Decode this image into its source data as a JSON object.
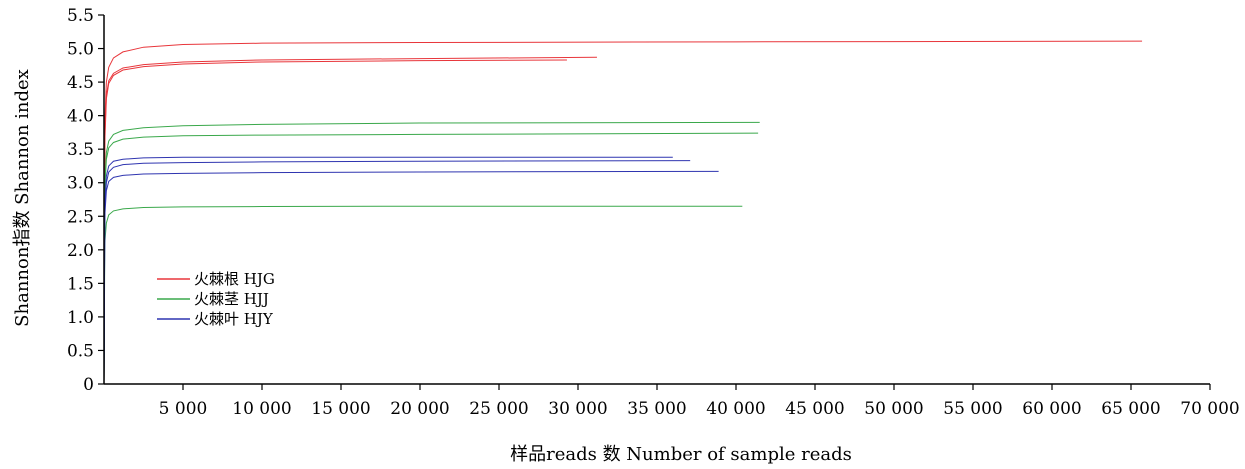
{
  "chart_data": {
    "type": "line",
    "xlabel": "样品reads 数  Number of sample reads",
    "ylabel": "Shannon指数  Shannon index",
    "xlim": [
      0,
      70000
    ],
    "ylim": [
      0,
      5.5
    ],
    "x_ticks": [
      {
        "value": 5000,
        "label": "5 000"
      },
      {
        "value": 10000,
        "label": "10 000"
      },
      {
        "value": 15000,
        "label": "15 000"
      },
      {
        "value": 20000,
        "label": "20 000"
      },
      {
        "value": 25000,
        "label": "25 000"
      },
      {
        "value": 30000,
        "label": "30 000"
      },
      {
        "value": 35000,
        "label": "35 000"
      },
      {
        "value": 40000,
        "label": "40 000"
      },
      {
        "value": 45000,
        "label": "45 000"
      },
      {
        "value": 50000,
        "label": "50 000"
      },
      {
        "value": 55000,
        "label": "55 000"
      },
      {
        "value": 60000,
        "label": "60 000"
      },
      {
        "value": 65000,
        "label": "65 000"
      },
      {
        "value": 70000,
        "label": "70 000"
      }
    ],
    "y_ticks": [
      {
        "value": 0,
        "label": "0"
      },
      {
        "value": 0.5,
        "label": "0.5"
      },
      {
        "value": 1.0,
        "label": "1.0"
      },
      {
        "value": 1.5,
        "label": "1.5"
      },
      {
        "value": 2.0,
        "label": "2.0"
      },
      {
        "value": 2.5,
        "label": "2.5"
      },
      {
        "value": 3.0,
        "label": "3.0"
      },
      {
        "value": 3.5,
        "label": "3.5"
      },
      {
        "value": 4.0,
        "label": "4.0"
      },
      {
        "value": 4.5,
        "label": "4.5"
      },
      {
        "value": 5.0,
        "label": "5.0"
      },
      {
        "value": 5.5,
        "label": "5.5"
      }
    ],
    "grid": false,
    "legend_position": "left-middle",
    "legend": [
      {
        "label": "火棘根 HJG",
        "color": "#e8363b"
      },
      {
        "label": "火棘茎 HJJ",
        "color": "#3aa84b"
      },
      {
        "label": "火棘叶 HJY",
        "color": "#2f35b0"
      }
    ],
    "series": [
      {
        "group": "HJG",
        "color": "#e8363b",
        "x": [
          0,
          50,
          150,
          300,
          600,
          1200,
          2500,
          5000,
          10000,
          20000,
          40000,
          65700
        ],
        "y": [
          0,
          3.9,
          4.5,
          4.72,
          4.86,
          4.95,
          5.02,
          5.06,
          5.08,
          5.09,
          5.1,
          5.11
        ]
      },
      {
        "group": "HJG",
        "color": "#e8363b",
        "x": [
          0,
          50,
          150,
          300,
          600,
          1200,
          2500,
          5000,
          10000,
          20000,
          31200
        ],
        "y": [
          0,
          3.7,
          4.3,
          4.52,
          4.63,
          4.71,
          4.76,
          4.8,
          4.83,
          4.85,
          4.87
        ]
      },
      {
        "group": "HJG",
        "color": "#e8363b",
        "x": [
          0,
          50,
          150,
          300,
          600,
          1200,
          2500,
          5000,
          10000,
          20000,
          29300
        ],
        "y": [
          0,
          3.6,
          4.25,
          4.48,
          4.6,
          4.68,
          4.73,
          4.77,
          4.8,
          4.82,
          4.83
        ]
      },
      {
        "group": "HJJ",
        "color": "#3aa84b",
        "x": [
          0,
          50,
          150,
          300,
          600,
          1200,
          2500,
          5000,
          10000,
          20000,
          41500
        ],
        "y": [
          0,
          3.0,
          3.45,
          3.62,
          3.72,
          3.78,
          3.82,
          3.85,
          3.87,
          3.89,
          3.9
        ]
      },
      {
        "group": "HJJ",
        "color": "#3aa84b",
        "x": [
          0,
          50,
          150,
          300,
          600,
          1200,
          2500,
          5000,
          10000,
          20000,
          41400
        ],
        "y": [
          0,
          2.9,
          3.35,
          3.52,
          3.6,
          3.65,
          3.68,
          3.7,
          3.71,
          3.72,
          3.74
        ]
      },
      {
        "group": "HJJ",
        "color": "#3aa84b",
        "x": [
          0,
          50,
          150,
          300,
          600,
          1200,
          2500,
          5000,
          10000,
          20000,
          40400
        ],
        "y": [
          0,
          2.1,
          2.4,
          2.52,
          2.58,
          2.61,
          2.63,
          2.64,
          2.645,
          2.65,
          2.65
        ]
      },
      {
        "group": "HJY",
        "color": "#2f35b0",
        "x": [
          0,
          50,
          150,
          300,
          600,
          1200,
          2500,
          5000,
          10000,
          20000,
          36000
        ],
        "y": [
          0,
          2.7,
          3.1,
          3.25,
          3.32,
          3.35,
          3.37,
          3.38,
          3.38,
          3.38,
          3.38
        ]
      },
      {
        "group": "HJY",
        "color": "#2f35b0",
        "x": [
          0,
          50,
          150,
          300,
          600,
          1200,
          2500,
          5000,
          10000,
          20000,
          37100
        ],
        "y": [
          0,
          2.6,
          3.0,
          3.16,
          3.23,
          3.27,
          3.29,
          3.3,
          3.31,
          3.32,
          3.33
        ]
      },
      {
        "group": "HJY",
        "color": "#2f35b0",
        "x": [
          0,
          50,
          150,
          300,
          600,
          1200,
          2500,
          5000,
          10000,
          20000,
          38900
        ],
        "y": [
          0,
          2.5,
          2.88,
          3.02,
          3.08,
          3.11,
          3.13,
          3.14,
          3.15,
          3.16,
          3.17
        ]
      }
    ]
  }
}
